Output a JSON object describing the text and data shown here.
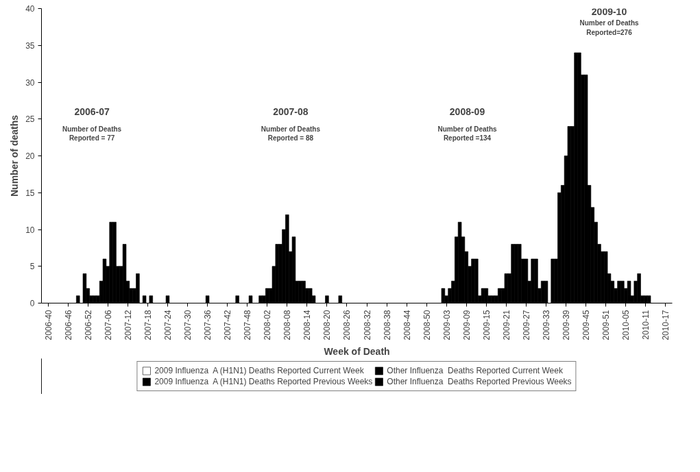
{
  "chart_data": {
    "type": "bar",
    "xlabel": "Week of Death",
    "ylabel": "Number of deaths",
    "categories": [
      "2006-40",
      null,
      null,
      null,
      null,
      null,
      "2006-46",
      null,
      null,
      null,
      null,
      null,
      "2006-52",
      null,
      null,
      null,
      null,
      null,
      "2007-06",
      null,
      null,
      null,
      null,
      null,
      "2007-12",
      null,
      null,
      null,
      null,
      null,
      "2007-18",
      null,
      null,
      null,
      null,
      null,
      "2007-24",
      null,
      null,
      null,
      null,
      null,
      "2007-30",
      null,
      null,
      null,
      null,
      null,
      "2007-36",
      null,
      null,
      null,
      null,
      null,
      "2007-42",
      null,
      null,
      null,
      null,
      null,
      "2007-48",
      null,
      null,
      null,
      null,
      null,
      "2008-02",
      null,
      null,
      null,
      null,
      null,
      "2008-08",
      null,
      null,
      null,
      null,
      null,
      "2008-14",
      null,
      null,
      null,
      null,
      null,
      "2008-20",
      null,
      null,
      null,
      null,
      null,
      "2008-26",
      null,
      null,
      null,
      null,
      null,
      "2008-32",
      null,
      null,
      null,
      null,
      null,
      "2008-38",
      null,
      null,
      null,
      null,
      null,
      "2008-44",
      null,
      null,
      null,
      null,
      null,
      "2008-50",
      null,
      null,
      null,
      null,
      null,
      "2009-03",
      null,
      null,
      null,
      null,
      null,
      "2009-09",
      null,
      null,
      null,
      null,
      null,
      "2009-15",
      null,
      null,
      null,
      null,
      null,
      "2009-21",
      null,
      null,
      null,
      null,
      null,
      "2009-27",
      null,
      null,
      null,
      null,
      null,
      "2009-33",
      null,
      null,
      null,
      null,
      null,
      "2009-39",
      null,
      null,
      null,
      null,
      null,
      "2009-45",
      null,
      null,
      null,
      null,
      null,
      "2009-51",
      null,
      null,
      null,
      null,
      null,
      "2010-05",
      null,
      null,
      null,
      null,
      null,
      "2010-11",
      null,
      null,
      null,
      null,
      null,
      "2010-17"
    ],
    "series": [
      {
        "name": "2009 Influenza  A (H1N1) Deaths Reported Current Week",
        "color": "#ffffff",
        "values": [
          0,
          0,
          0,
          0,
          0,
          0,
          0,
          0,
          0,
          0,
          0,
          0,
          0,
          0,
          0,
          0,
          0,
          0,
          0,
          0,
          0,
          0,
          0,
          0,
          0,
          0,
          0,
          0,
          0,
          0,
          0,
          0,
          0,
          0,
          0,
          0,
          0,
          0,
          0,
          0,
          0,
          0,
          0,
          0,
          0,
          0,
          0,
          0,
          0,
          0,
          0,
          0,
          0,
          0,
          0,
          0,
          0,
          0,
          0,
          0,
          0,
          0,
          0,
          0,
          0,
          0,
          0,
          0,
          0,
          0,
          0,
          0,
          0,
          0,
          0,
          0,
          0,
          0,
          0,
          0,
          0,
          0,
          0,
          0,
          0,
          0,
          0,
          0,
          0,
          0,
          0,
          0,
          0,
          0,
          0,
          0,
          0,
          0,
          0,
          0,
          0,
          0,
          0,
          0,
          0,
          0,
          0,
          0,
          0,
          0,
          0,
          0,
          0,
          0,
          0,
          0,
          0,
          0,
          0,
          0,
          0,
          0,
          0,
          0,
          0,
          0,
          0,
          0,
          0,
          0,
          0,
          0,
          0,
          0,
          0,
          0,
          0,
          0,
          0,
          0,
          0,
          0,
          0,
          0,
          0,
          0,
          0,
          0,
          0,
          0,
          0,
          0,
          0,
          0,
          0,
          0,
          0,
          0,
          0,
          0,
          0,
          0,
          0,
          0,
          0,
          0,
          0,
          0,
          0,
          0,
          0,
          0,
          0,
          0,
          0,
          0,
          0,
          0,
          0,
          0,
          0,
          0,
          0,
          0,
          0,
          0,
          0
        ]
      },
      {
        "name": "2009 Influenza  A (H1N1) Deaths Reported Previous Weeks",
        "color": "#000000",
        "values": [
          null,
          null,
          null,
          null,
          null,
          null,
          null,
          null,
          null,
          null,
          null,
          null,
          null,
          null,
          null,
          null,
          null,
          null,
          null,
          null,
          null,
          null,
          null,
          null,
          null,
          null,
          null,
          null,
          null,
          null,
          null,
          null,
          null,
          null,
          null,
          null,
          null,
          null,
          null,
          null,
          null,
          null,
          null,
          null,
          null,
          null,
          null,
          null,
          null,
          null,
          null,
          null,
          null,
          null,
          null,
          null,
          null,
          null,
          null,
          null,
          null,
          null,
          null,
          null,
          null,
          null,
          null,
          null,
          null,
          null,
          null,
          null,
          null,
          null,
          null,
          null,
          null,
          null,
          null,
          null,
          null,
          null,
          null,
          null,
          null,
          null,
          null,
          null,
          null,
          null,
          null,
          null,
          null,
          null,
          null,
          null,
          null,
          null,
          null,
          null,
          null,
          null,
          null,
          null,
          null,
          null,
          null,
          null,
          null,
          null,
          null,
          null,
          null,
          null,
          null,
          null,
          null,
          null,
          null,
          null,
          null,
          null,
          null,
          null,
          null,
          null,
          null,
          null,
          null,
          null,
          null,
          null,
          null,
          1,
          1,
          1,
          2,
          2,
          4,
          4,
          8,
          8,
          8,
          6,
          6,
          3,
          6,
          6,
          2,
          3,
          3,
          0,
          6,
          6,
          15,
          16,
          20,
          24,
          24,
          34,
          34,
          31,
          31,
          16,
          13,
          11,
          8,
          7,
          7,
          4,
          3,
          2,
          3,
          3,
          2,
          3,
          1,
          3,
          4,
          1,
          1,
          1,
          0,
          0,
          0,
          0,
          0
        ]
      },
      {
        "name": "Other Influenza  Deaths Reported Current Week",
        "color": "#000000",
        "values": [
          0,
          0,
          0,
          0,
          0,
          0,
          0,
          0,
          0,
          0,
          0,
          0,
          0,
          0,
          0,
          0,
          0,
          0,
          0,
          0,
          0,
          0,
          0,
          0,
          0,
          0,
          0,
          0,
          0,
          0,
          0,
          0,
          0,
          0,
          0,
          0,
          0,
          0,
          0,
          0,
          0,
          0,
          0,
          0,
          0,
          0,
          0,
          0,
          0,
          0,
          0,
          0,
          0,
          0,
          0,
          0,
          0,
          0,
          0,
          0,
          0,
          0,
          0,
          0,
          0,
          0,
          0,
          0,
          0,
          0,
          0,
          0,
          0,
          0,
          0,
          0,
          0,
          0,
          0,
          0,
          0,
          0,
          0,
          0,
          0,
          0,
          0,
          0,
          0,
          0,
          0,
          0,
          0,
          0,
          0,
          0,
          0,
          0,
          0,
          0,
          0,
          0,
          0,
          0,
          0,
          0,
          0,
          0,
          0,
          0,
          0,
          0,
          0,
          0,
          0,
          0,
          0,
          0,
          0,
          0,
          0,
          0,
          0,
          0,
          0,
          0,
          0,
          0,
          0,
          0,
          0,
          0,
          0,
          0,
          0,
          0,
          0,
          0,
          0,
          0,
          0,
          0,
          0,
          0,
          0,
          0,
          0,
          0,
          0,
          0,
          0,
          0,
          0,
          0,
          0,
          0,
          0,
          0,
          0,
          0,
          0,
          0,
          0,
          0,
          0,
          0,
          0,
          0,
          0,
          0,
          0,
          0,
          0,
          0,
          0,
          0,
          0,
          0,
          0,
          0,
          0,
          0,
          0,
          0,
          0,
          0,
          0
        ]
      },
      {
        "name": "Other Influenza  Deaths Reported Previous Weeks",
        "color": "#000000",
        "values": [
          0,
          0,
          0,
          0,
          0,
          0,
          0,
          0,
          0,
          1,
          0,
          4,
          2,
          1,
          1,
          1,
          3,
          6,
          5,
          11,
          11,
          5,
          5,
          8,
          3,
          2,
          2,
          4,
          0,
          1,
          0,
          1,
          0,
          0,
          0,
          0,
          1,
          0,
          0,
          0,
          0,
          0,
          0,
          0,
          0,
          0,
          0,
          0,
          1,
          0,
          0,
          0,
          0,
          0,
          0,
          0,
          0,
          1,
          0,
          0,
          0,
          1,
          0,
          0,
          1,
          1,
          2,
          2,
          5,
          8,
          8,
          10,
          12,
          7,
          9,
          3,
          3,
          3,
          2,
          2,
          1,
          0,
          0,
          0,
          1,
          0,
          0,
          0,
          1,
          0,
          0,
          0,
          0,
          0,
          0,
          0,
          0,
          0,
          0,
          0,
          0,
          0,
          0,
          0,
          0,
          0,
          0,
          0,
          0,
          0,
          0,
          0,
          0,
          0,
          0,
          0,
          0,
          0,
          0,
          2,
          1,
          2,
          3,
          9,
          11,
          9,
          7,
          5,
          6,
          6,
          1,
          2,
          2,
          null,
          null,
          null,
          null,
          null,
          null,
          null,
          null,
          null,
          null,
          null,
          null,
          null,
          null,
          null,
          null,
          null,
          null,
          null,
          null,
          null,
          null,
          null,
          null,
          null,
          null,
          null,
          null,
          null,
          null,
          null,
          null,
          null,
          null,
          null,
          null,
          null,
          null,
          null,
          null,
          null,
          null,
          null,
          null,
          null,
          null,
          null,
          null,
          null,
          null,
          null,
          null,
          null,
          null
        ]
      }
    ],
    "ylim": [
      0,
      40
    ],
    "yticks": [
      0,
      5,
      10,
      15,
      20,
      25,
      30,
      35,
      40
    ],
    "grid": false,
    "legend": "bottom",
    "annotations": [
      "2006-07",
      "Number of Deaths\nReported = 77",
      "2007-08",
      "Number of Deaths\nReported = 88",
      "2008-09",
      "Number of Deaths\nReported =134",
      "2009-10",
      "Number of Deaths\nReported=276"
    ]
  }
}
